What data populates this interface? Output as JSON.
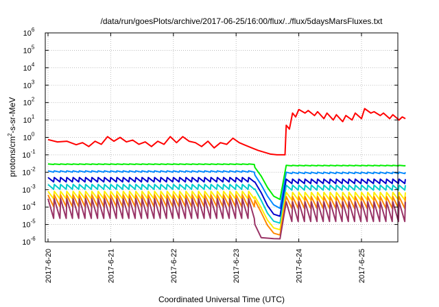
{
  "chart_data": {
    "type": "line",
    "title": "/data/run/goesPlots/archive/2017-06-25/16:00/flux/../flux/5daysMarsFluxes.txt",
    "xlabel": "Coordinated Universal Time (UTC)",
    "ylabel": "protons/cm²-s-sr-MeV",
    "ylabel_main": "protons/cm",
    "ylabel_sup": "2",
    "ylabel_tail": "-s-sr-MeV",
    "yscale": "log",
    "ylim_exponents": [
      -6,
      6
    ],
    "y_ticks": [
      {
        "base": "10",
        "exp": "-6"
      },
      {
        "base": "10",
        "exp": "-5"
      },
      {
        "base": "10",
        "exp": "-4"
      },
      {
        "base": "10",
        "exp": "-3"
      },
      {
        "base": "10",
        "exp": "-2"
      },
      {
        "base": "10",
        "exp": "-1"
      },
      {
        "base": "10",
        "exp": "0"
      },
      {
        "base": "10",
        "exp": "1"
      },
      {
        "base": "10",
        "exp": "2"
      },
      {
        "base": "10",
        "exp": "3"
      },
      {
        "base": "10",
        "exp": "4"
      },
      {
        "base": "10",
        "exp": "5"
      },
      {
        "base": "10",
        "exp": "6"
      }
    ],
    "x_ticks": [
      "2017-6-20",
      "2017-6-21",
      "2017-6-22",
      "2017-6-23",
      "2017-6-24",
      "2017-6-25"
    ],
    "xlim_days": [
      0,
      5.7
    ],
    "grid": true,
    "legend": "none",
    "series": [
      {
        "color": "#ff0000",
        "values": [
          [
            0,
            0.75
          ],
          [
            0.15,
            0.55
          ],
          [
            0.3,
            0.6
          ],
          [
            0.45,
            0.38
          ],
          [
            0.55,
            0.5
          ],
          [
            0.65,
            0.3
          ],
          [
            0.75,
            0.6
          ],
          [
            0.85,
            0.4
          ],
          [
            0.95,
            1.1
          ],
          [
            1.05,
            0.6
          ],
          [
            1.15,
            1.0
          ],
          [
            1.25,
            0.55
          ],
          [
            1.35,
            0.7
          ],
          [
            1.45,
            0.4
          ],
          [
            1.55,
            0.55
          ],
          [
            1.65,
            0.3
          ],
          [
            1.75,
            0.6
          ],
          [
            1.85,
            0.4
          ],
          [
            1.95,
            1.1
          ],
          [
            2.05,
            0.5
          ],
          [
            2.15,
            1.1
          ],
          [
            2.25,
            0.6
          ],
          [
            2.35,
            0.5
          ],
          [
            2.45,
            0.3
          ],
          [
            2.55,
            0.6
          ],
          [
            2.65,
            0.25
          ],
          [
            2.75,
            0.5
          ],
          [
            2.85,
            0.4
          ],
          [
            2.95,
            0.9
          ],
          [
            3.05,
            0.5
          ],
          [
            3.15,
            0.35
          ],
          [
            3.25,
            0.25
          ],
          [
            3.35,
            0.18
          ],
          [
            3.45,
            0.14
          ],
          [
            3.55,
            0.11
          ],
          [
            3.65,
            0.1
          ],
          [
            3.75,
            0.1
          ],
          [
            3.78,
            0.1
          ],
          [
            3.8,
            5
          ],
          [
            3.85,
            3
          ],
          [
            3.9,
            25
          ],
          [
            3.95,
            15
          ],
          [
            4.0,
            40
          ],
          [
            4.1,
            25
          ],
          [
            4.15,
            35
          ],
          [
            4.25,
            18
          ],
          [
            4.3,
            30
          ],
          [
            4.4,
            12
          ],
          [
            4.45,
            25
          ],
          [
            4.55,
            10
          ],
          [
            4.6,
            20
          ],
          [
            4.7,
            8
          ],
          [
            4.75,
            18
          ],
          [
            4.85,
            10
          ],
          [
            4.9,
            25
          ],
          [
            5.0,
            12
          ],
          [
            5.05,
            45
          ],
          [
            5.15,
            25
          ],
          [
            5.2,
            30
          ],
          [
            5.3,
            18
          ],
          [
            5.35,
            25
          ],
          [
            5.45,
            12
          ],
          [
            5.5,
            20
          ],
          [
            5.6,
            10
          ],
          [
            5.65,
            15
          ],
          [
            5.7,
            12
          ]
        ]
      },
      {
        "color": "#00ee00",
        "values": [
          [
            0,
            0.03
          ],
          [
            3.25,
            0.03
          ],
          [
            3.35,
            0.012
          ],
          [
            3.45,
            0.003
          ],
          [
            3.55,
            0.0006
          ],
          [
            3.65,
            0.0003
          ],
          [
            3.75,
            0.00025
          ],
          [
            3.78,
            0.00025
          ],
          [
            3.8,
            0.025
          ],
          [
            5.7,
            0.025
          ]
        ],
        "sawtooth": [
          0.008,
          0.012
        ]
      },
      {
        "color": "#0088ff",
        "values": [
          [
            0,
            0.012
          ],
          [
            3.25,
            0.012
          ],
          [
            3.35,
            0.004
          ],
          [
            3.45,
            0.0009
          ],
          [
            3.55,
            0.0002
          ],
          [
            3.65,
            9e-05
          ],
          [
            3.75,
            8e-05
          ],
          [
            3.78,
            8e-05
          ],
          [
            3.8,
            0.01
          ],
          [
            5.7,
            0.01
          ]
        ],
        "sawtooth": [
          0.003,
          0.005
        ]
      },
      {
        "color": "#0000cc",
        "values": [
          [
            0,
            0.005
          ],
          [
            3.25,
            0.005
          ],
          [
            3.35,
            0.0015
          ],
          [
            3.45,
            0.0003
          ],
          [
            3.55,
            5e-05
          ],
          [
            3.65,
            3e-05
          ],
          [
            3.75,
            3e-05
          ],
          [
            3.78,
            3e-05
          ],
          [
            3.8,
            0.004
          ],
          [
            5.7,
            0.004
          ]
        ],
        "sawtooth": [
          0.0008,
          0.002
        ]
      },
      {
        "color": "#00cccc",
        "values": [
          [
            0,
            0.002
          ],
          [
            3.25,
            0.002
          ],
          [
            3.35,
            0.0006
          ],
          [
            3.45,
            0.0001
          ],
          [
            3.55,
            2e-05
          ],
          [
            3.65,
            1.2e-05
          ],
          [
            3.75,
            1.2e-05
          ],
          [
            3.78,
            1.2e-05
          ],
          [
            3.8,
            0.0018
          ],
          [
            5.7,
            0.0018
          ]
        ],
        "sawtooth": [
          0.0003,
          0.0008
        ]
      },
      {
        "color": "#ffee00",
        "values": [
          [
            0,
            0.0008
          ],
          [
            3.25,
            0.0008
          ],
          [
            3.35,
            0.0002
          ],
          [
            3.45,
            4e-05
          ],
          [
            3.55,
            8e-06
          ],
          [
            3.65,
            5e-06
          ],
          [
            3.75,
            5e-06
          ],
          [
            3.78,
            5e-06
          ],
          [
            3.8,
            0.0007
          ],
          [
            5.7,
            0.0007
          ]
        ],
        "sawtooth": [
          8e-05,
          0.0003
        ]
      },
      {
        "color": "#ff8800",
        "values": [
          [
            0,
            0.0005
          ],
          [
            3.25,
            0.0005
          ],
          [
            3.35,
            0.00012
          ],
          [
            3.45,
            2e-05
          ],
          [
            3.55,
            4e-06
          ],
          [
            3.65,
            2.5e-06
          ],
          [
            3.75,
            2.5e-06
          ],
          [
            3.78,
            2.5e-06
          ],
          [
            3.8,
            0.0004
          ],
          [
            5.7,
            0.0004
          ]
        ],
        "sawtooth": [
          3e-05,
          0.0002
        ]
      },
      {
        "color": "#993366",
        "values": [
          [
            0,
            0.0003
          ],
          [
            3.25,
            0.0003
          ],
          [
            3.3,
            1e-05
          ],
          [
            3.35,
            1.8e-06
          ],
          [
            3.65,
            1.5e-06
          ],
          [
            3.78,
            1.5e-06
          ],
          [
            3.8,
            0.0002
          ],
          [
            5.7,
            0.0002
          ]
        ],
        "sawtooth": [
          8e-06,
          0.00015
        ]
      }
    ]
  }
}
